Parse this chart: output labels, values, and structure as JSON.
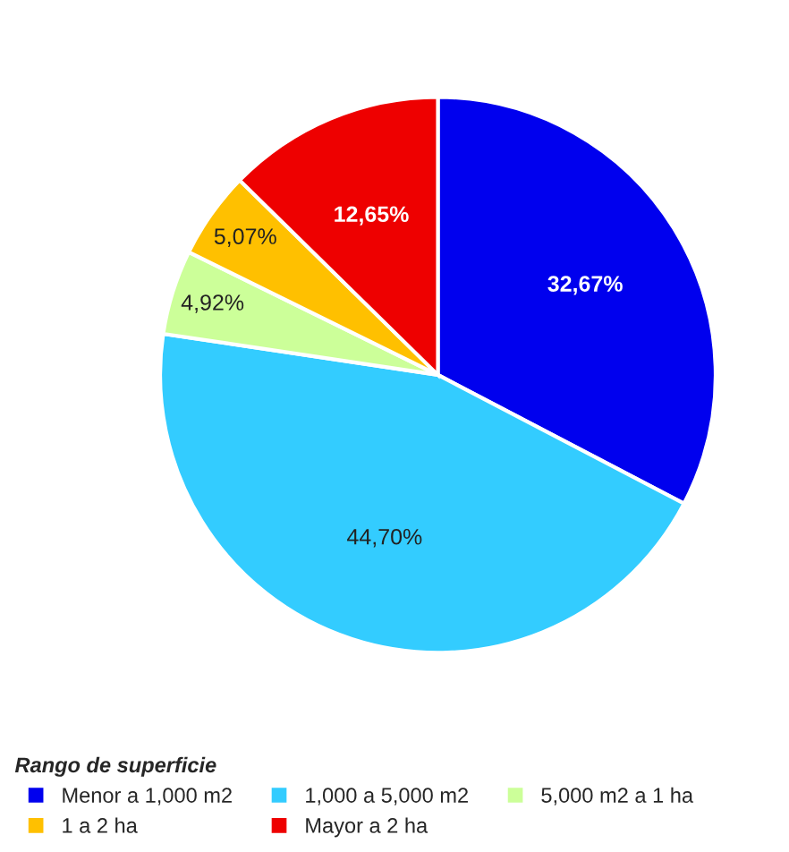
{
  "chart_data": {
    "type": "pie",
    "legend_title": "Rango de superficie",
    "categories": [
      "Menor a 1,000 m2",
      "1,000 a 5,000 m2",
      "5,000 m2 a 1 ha",
      "1 a 2 ha",
      "Mayor a 2 ha"
    ],
    "values": [
      32.67,
      44.7,
      4.92,
      5.07,
      12.65
    ],
    "value_labels": [
      "32,67%",
      "44,70%",
      "4,92%",
      "5,07%",
      "12,65%"
    ],
    "colors": [
      "#0000ee",
      "#33ccff",
      "#ccff99",
      "#ffc000",
      "#ee0000"
    ],
    "legend": "bottom left"
  }
}
